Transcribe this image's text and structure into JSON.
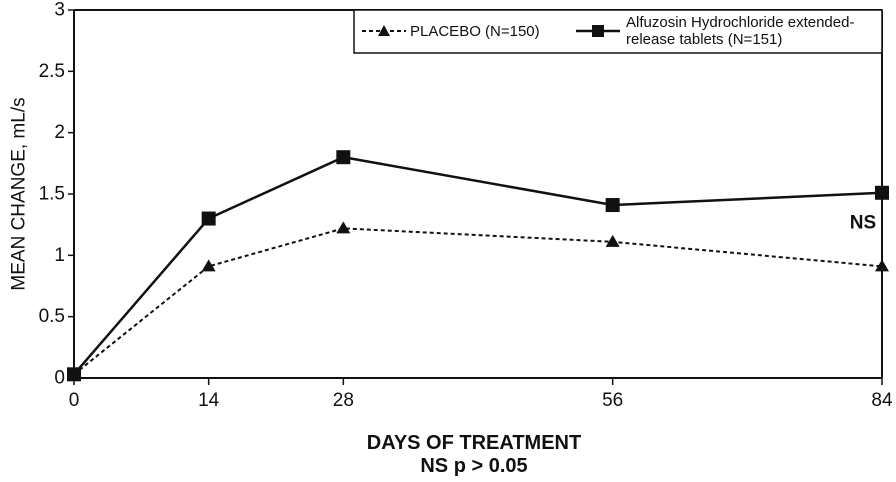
{
  "chart_data": {
    "type": "line",
    "x": [
      0,
      14,
      28,
      56,
      84
    ],
    "x_tick_labels": [
      "0",
      "14",
      "28",
      "56",
      "84"
    ],
    "y_tick_labels": [
      "0",
      "0.5",
      "1",
      "1.5",
      "2",
      "2.5",
      "3"
    ],
    "xlim": [
      0,
      84
    ],
    "ylim": [
      0,
      3
    ],
    "ylabel": "MEAN CHANGE, mL/s",
    "xlabel": "DAYS OF TREATMENT",
    "xlabel_sub": "NS p > 0.05",
    "grid": false,
    "legend_position": "top-right",
    "series": [
      {
        "name": "PLACEBO (N=150)",
        "values": [
          0.03,
          0.91,
          1.22,
          1.11,
          0.91
        ],
        "line_style": "dashed",
        "marker": "triangle",
        "color": "#111111"
      },
      {
        "name_line1": "Alfuzosin Hydrochloride extended-",
        "name_line2": "release tablets (N=151)",
        "values": [
          0.03,
          1.3,
          1.8,
          1.41,
          1.51
        ],
        "line_style": "solid",
        "marker": "square",
        "color": "#111111"
      }
    ],
    "annotations": [
      {
        "text": "NS",
        "x": 84,
        "y": 1.3
      }
    ]
  }
}
